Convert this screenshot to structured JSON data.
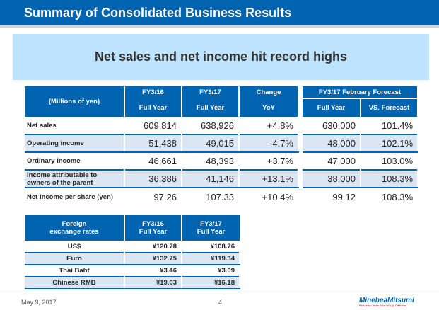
{
  "header": {
    "title": "Summary of Consolidated Business Results"
  },
  "banner": {
    "text": "Net sales and net income hit record highs"
  },
  "main_table": {
    "unit": "(Millions of yen)",
    "col_groups": [
      "FY3/16",
      "FY3/17",
      "Change",
      "FY3/17 February Forecast"
    ],
    "col_sub": [
      "Full Year",
      "Full Year",
      "YoY",
      "Full Year",
      "VS. Forecast"
    ],
    "rows": [
      {
        "label": "Net sales",
        "fy16": "609,814",
        "fy17": "638,926",
        "yoy": "+4.8%",
        "fc": "630,000",
        "vs": "101.4%"
      },
      {
        "label": "Operating income",
        "fy16": "51,438",
        "fy17": "49,015",
        "yoy": "-4.7%",
        "fc": "48,000",
        "vs": "102.1%"
      },
      {
        "label": "Ordinary income",
        "fy16": "46,661",
        "fy17": "48,393",
        "yoy": "+3.7%",
        "fc": "47,000",
        "vs": "103.0%"
      },
      {
        "label": "Income attributable to owners of the parent",
        "fy16": "36,386",
        "fy17": "41,146",
        "yoy": "+13.1%",
        "fc": "38,000",
        "vs": "108.3%"
      },
      {
        "label": "Net income per share (yen)",
        "fy16": "97.26",
        "fy17": "107.33",
        "yoy": "+10.4%",
        "fc": "99.12",
        "vs": "108.3%"
      }
    ]
  },
  "fx_table": {
    "headers": [
      "Foreign exchange rates",
      "FY3/16 Full Year",
      "FY3/17 Full Year"
    ],
    "rows": [
      {
        "label": "US$",
        "fy16": "¥120.78",
        "fy17": "¥108.76"
      },
      {
        "label": "Euro",
        "fy16": "¥132.75",
        "fy17": "¥119.34"
      },
      {
        "label": "Thai Baht",
        "fy16": "¥3.46",
        "fy17": "¥3.09"
      },
      {
        "label": "Chinese RMB",
        "fy16": "¥19.03",
        "fy17": "¥16.18"
      }
    ]
  },
  "footer": {
    "date": "May 9, 2017",
    "page": "4",
    "logo": "MinebeaMitsumi",
    "tagline": "Passion to Create Value through Difference"
  },
  "colors": {
    "brand_blue": "#0064b0",
    "banner": "#bde3ff",
    "shade": "#dce6f2"
  }
}
